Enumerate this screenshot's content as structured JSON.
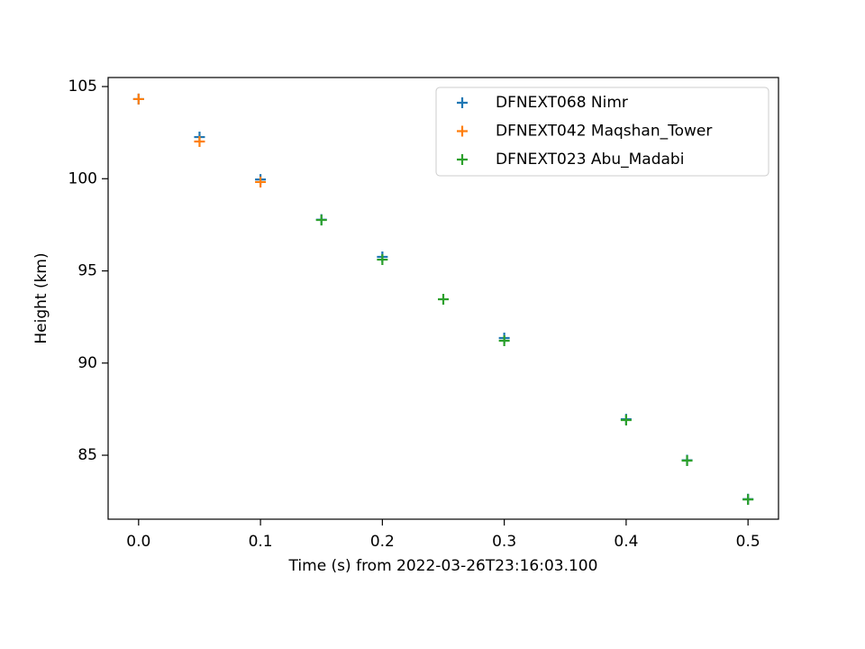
{
  "chart_data": {
    "type": "scatter",
    "xlabel": "Time (s) from 2022-03-26T23:16:03.100",
    "ylabel": "Height (km)",
    "xlim": [
      -0.025,
      0.525
    ],
    "ylim": [
      81.53,
      105.49
    ],
    "xticks": [
      {
        "value": 0,
        "label": "0.0"
      },
      {
        "value": 0.1,
        "label": "0.1"
      },
      {
        "value": 0.2,
        "label": "0.2"
      },
      {
        "value": 0.3,
        "label": "0.3"
      },
      {
        "value": 0.4,
        "label": "0.4"
      },
      {
        "value": 0.5,
        "label": "0.5"
      }
    ],
    "yticks": [
      85,
      90,
      95,
      100,
      105
    ],
    "grid": false,
    "legend": "upper right",
    "marker": "+",
    "series": [
      {
        "name": "DFNEXT068 Nimr",
        "color": "#1f77b4",
        "x": [
          0,
          0.05,
          0.1,
          0.15,
          0.2,
          0.3,
          0.4,
          0.45,
          0.5
        ],
        "values": [
          104.32,
          102.26,
          99.96,
          97.78,
          95.76,
          91.36,
          86.95,
          84.73,
          82.62
        ]
      },
      {
        "name": "DFNEXT042 Maqshan_Tower",
        "color": "#ff7f0e",
        "x": [
          0,
          0.05,
          0.1
        ],
        "values": [
          104.32,
          102.02,
          99.82
        ]
      },
      {
        "name": "DFNEXT023 Abu_Madabi",
        "color": "#2ca02c",
        "x": [
          0.15,
          0.2,
          0.25,
          0.3,
          0.4,
          0.45,
          0.5
        ],
        "values": [
          97.76,
          95.61,
          93.46,
          91.21,
          86.91,
          84.71,
          82.6
        ]
      }
    ]
  }
}
